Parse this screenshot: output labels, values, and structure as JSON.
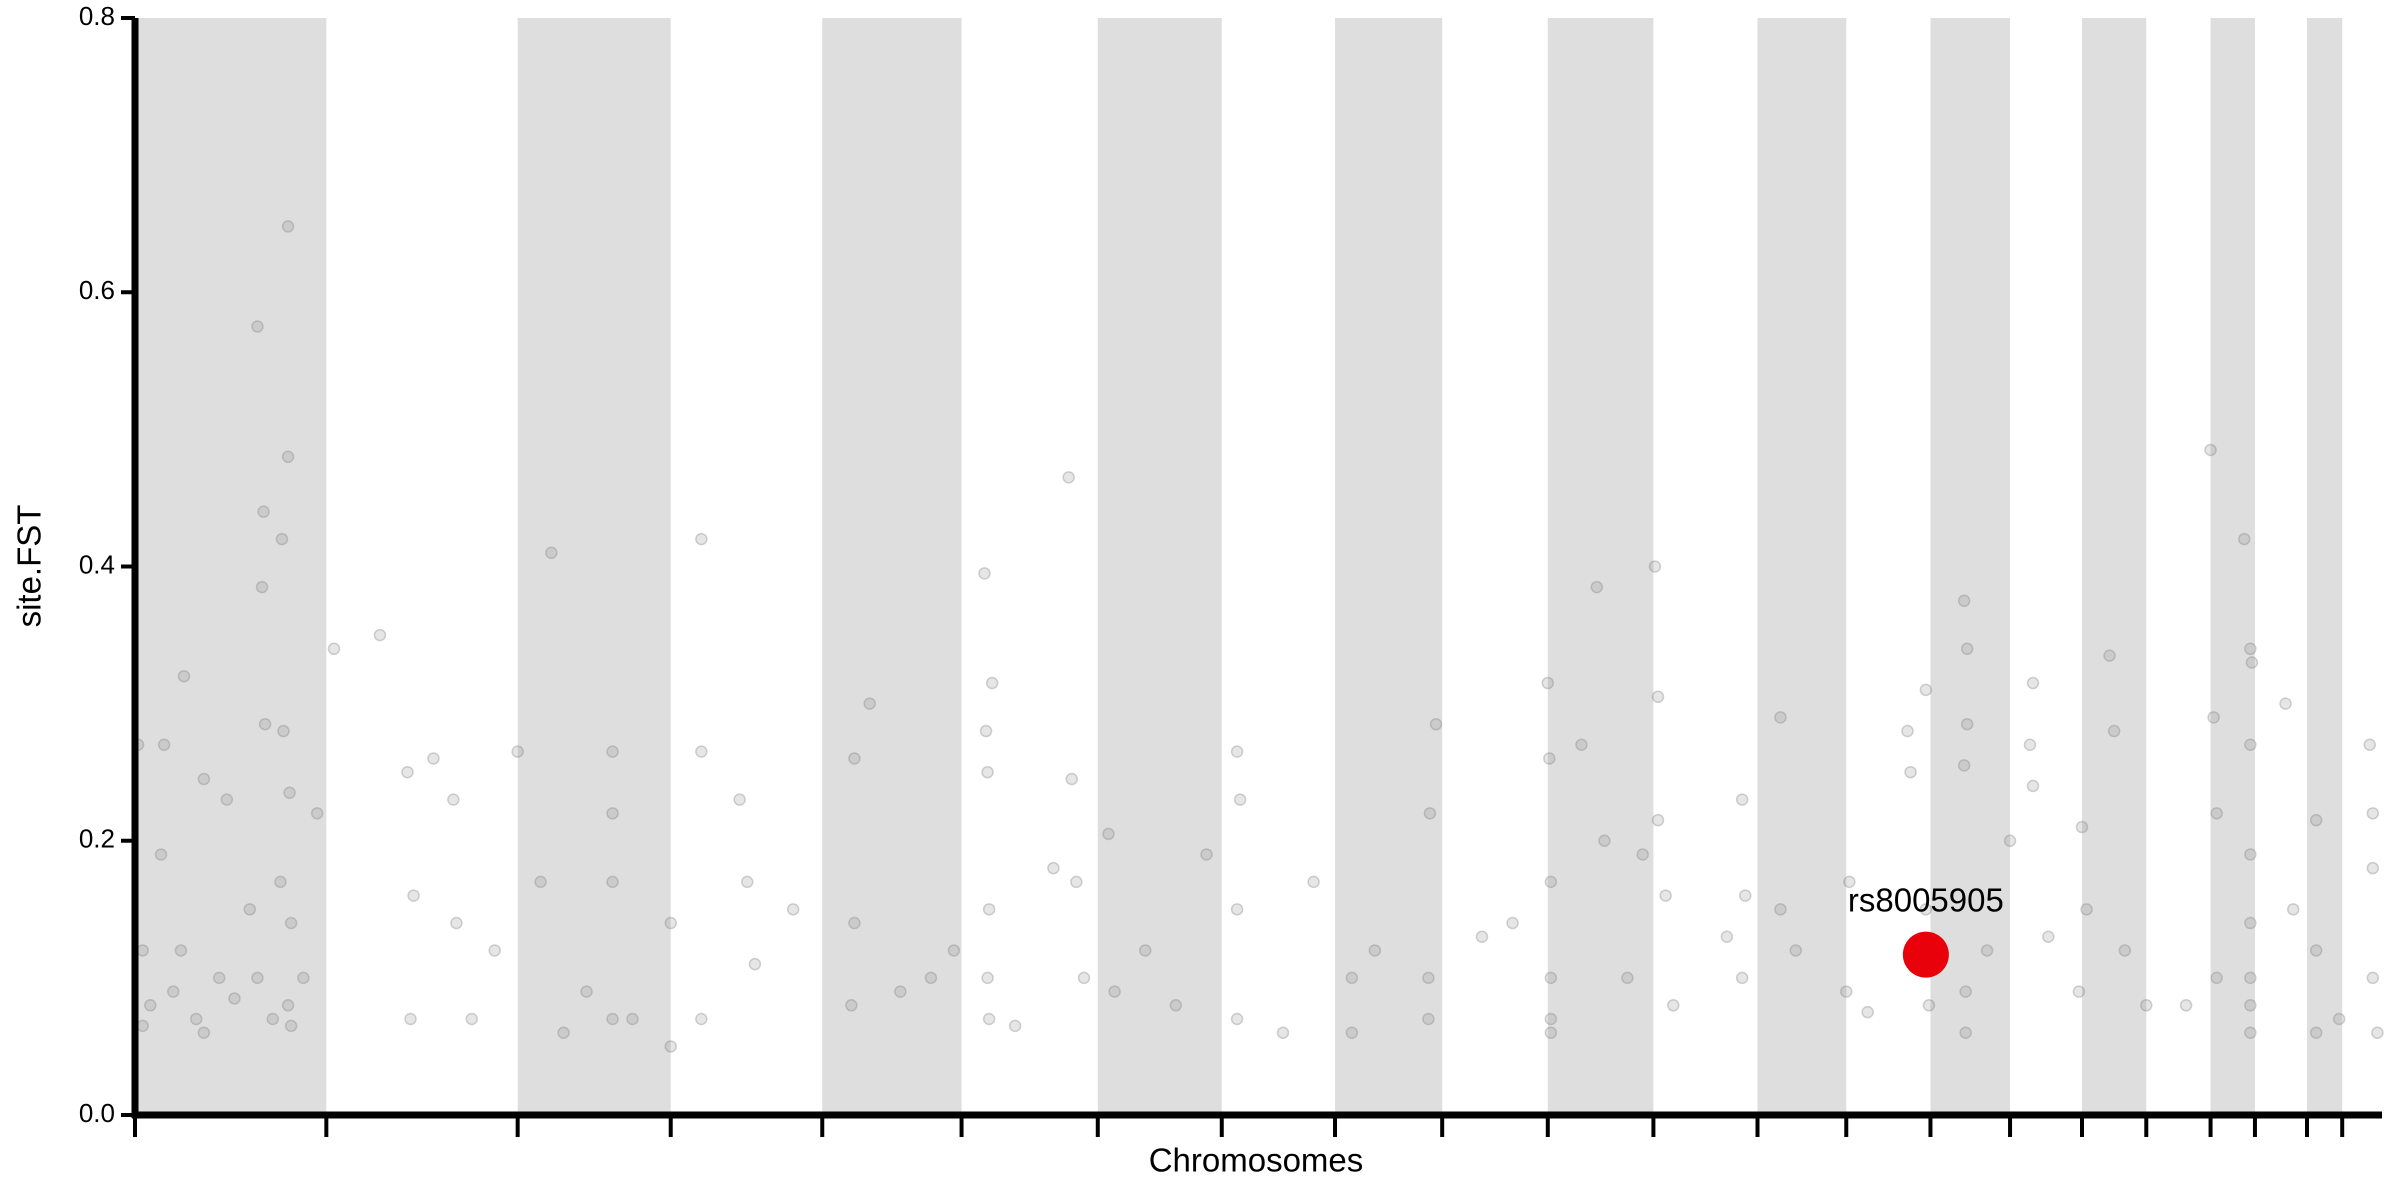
{
  "chart_data": {
    "type": "scatter",
    "xlabel": "Chromosomes",
    "ylabel": "site.FST",
    "xlim": [
      0,
      1468
    ],
    "ylim": [
      0,
      0.8
    ],
    "yticks": [
      {
        "value": 0,
        "label": "0.0"
      },
      0.2,
      0.4,
      0.6,
      0.8
    ],
    "xticks": [
      0,
      125,
      250,
      350,
      449,
      540,
      629,
      710,
      784,
      854,
      923,
      992,
      1060,
      1118,
      1173,
      1225,
      1272,
      1314,
      1356,
      1385,
      1419,
      1442
    ],
    "band_color": "#dedede",
    "points": {
      "color": "#808080",
      "x": [
        2,
        17,
        19,
        32,
        45,
        60,
        80,
        84,
        83,
        85,
        96,
        97,
        100,
        100,
        101,
        119,
        5,
        10,
        25,
        40,
        45,
        65,
        75,
        80,
        90,
        100,
        102,
        110,
        5,
        30,
        55,
        95,
        102,
        130,
        160,
        178,
        182,
        180,
        195,
        208,
        210,
        220,
        235,
        250,
        265,
        272,
        280,
        295,
        312,
        312,
        312,
        312,
        325,
        350,
        350,
        370,
        370,
        370,
        395,
        400,
        405,
        430,
        470,
        480,
        468,
        470,
        500,
        520,
        535,
        555,
        556,
        557,
        558,
        557,
        558,
        560,
        575,
        600,
        610,
        612,
        615,
        620,
        636,
        640,
        660,
        680,
        700,
        720,
        722,
        720,
        720,
        750,
        770,
        795,
        795,
        810,
        850,
        846,
        845,
        845,
        880,
        900,
        923,
        924,
        925,
        925,
        925,
        925,
        945,
        955,
        960,
        975,
        985,
        993,
        995,
        995,
        1000,
        1005,
        1040,
        1050,
        1052,
        1050,
        1075,
        1075,
        1085,
        1118,
        1120,
        1132,
        1158,
        1160,
        1170,
        1170,
        1172,
        1195,
        1197,
        1197,
        1195,
        1196,
        1196,
        1210,
        1225,
        1240,
        1238,
        1240,
        1250,
        1270,
        1272,
        1275,
        1290,
        1293,
        1300,
        1314,
        1340,
        1356,
        1358,
        1360,
        1360,
        1378,
        1382,
        1382,
        1382,
        1382,
        1382,
        1382,
        1382,
        1383,
        1405,
        1410,
        1425,
        1425,
        1425,
        1440,
        1460,
        1462,
        1462,
        1462,
        1465
      ],
      "y": [
        0.27,
        0.19,
        0.27,
        0.32,
        0.245,
        0.23,
        0.575,
        0.44,
        0.385,
        0.285,
        0.42,
        0.28,
        0.48,
        0.648,
        0.235,
        0.22,
        0.12,
        0.08,
        0.09,
        0.07,
        0.06,
        0.085,
        0.15,
        0.1,
        0.07,
        0.08,
        0.065,
        0.1,
        0.065,
        0.12,
        0.1,
        0.17,
        0.14,
        0.34,
        0.35,
        0.25,
        0.16,
        0.07,
        0.26,
        0.23,
        0.14,
        0.07,
        0.12,
        0.265,
        0.17,
        0.41,
        0.06,
        0.09,
        0.265,
        0.22,
        0.17,
        0.07,
        0.07,
        0.14,
        0.05,
        0.42,
        0.265,
        0.07,
        0.23,
        0.17,
        0.11,
        0.15,
        0.26,
        0.3,
        0.08,
        0.14,
        0.09,
        0.1,
        0.12,
        0.395,
        0.28,
        0.25,
        0.15,
        0.1,
        0.07,
        0.315,
        0.065,
        0.18,
        0.465,
        0.245,
        0.17,
        0.1,
        0.205,
        0.09,
        0.12,
        0.08,
        0.19,
        0.265,
        0.23,
        0.15,
        0.07,
        0.06,
        0.17,
        0.06,
        0.1,
        0.12,
        0.285,
        0.22,
        0.1,
        0.07,
        0.13,
        0.14,
        0.315,
        0.26,
        0.17,
        0.1,
        0.07,
        0.06,
        0.27,
        0.385,
        0.2,
        0.1,
        0.19,
        0.4,
        0.305,
        0.215,
        0.16,
        0.08,
        0.13,
        0.23,
        0.16,
        0.1,
        0.29,
        0.15,
        0.12,
        0.09,
        0.17,
        0.075,
        0.28,
        0.25,
        0.31,
        0.15,
        0.08,
        0.375,
        0.34,
        0.285,
        0.255,
        0.09,
        0.06,
        0.12,
        0.2,
        0.315,
        0.27,
        0.24,
        0.13,
        0.09,
        0.21,
        0.15,
        0.335,
        0.28,
        0.12,
        0.08,
        0.08,
        0.485,
        0.29,
        0.22,
        0.1,
        0.42,
        0.34,
        0.27,
        0.19,
        0.14,
        0.1,
        0.08,
        0.06,
        0.33,
        0.3,
        0.15,
        0.215,
        0.12,
        0.06,
        0.07,
        0.27,
        0.22,
        0.18,
        0.1,
        0.06
      ]
    },
    "highlight": {
      "label": "rs8005905",
      "color": "#e8000b",
      "x": [
        1170
      ],
      "y": [
        0.117
      ]
    }
  }
}
